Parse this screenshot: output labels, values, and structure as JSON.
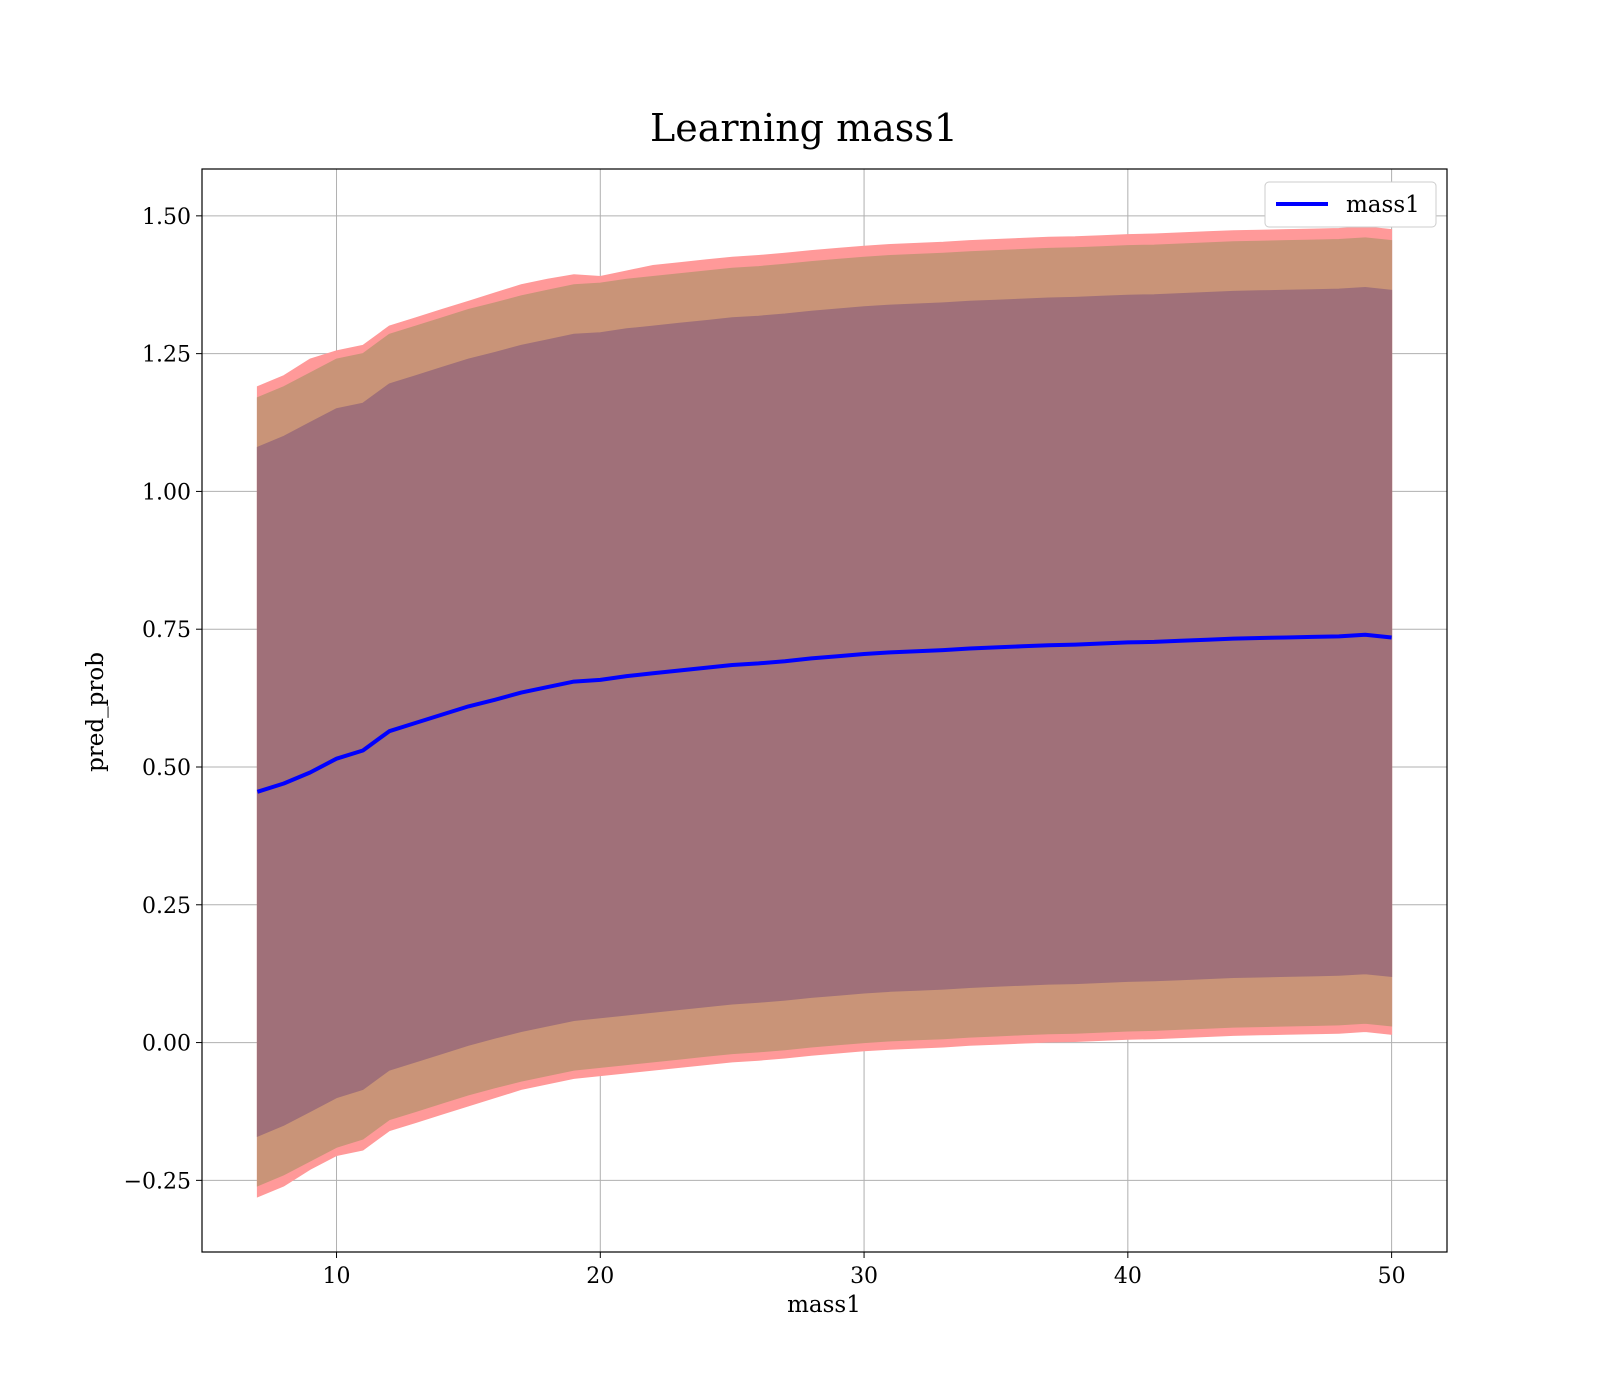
{
  "chart_data": {
    "type": "area",
    "title": "Learning mass1",
    "xlabel": "mass1",
    "ylabel": "pred_prob",
    "xlim": [
      4.9,
      52.1
    ],
    "ylim": [
      -0.38,
      1.585
    ],
    "grid": true,
    "legend_placement": "top-right",
    "xticks": [
      10,
      20,
      30,
      40,
      50
    ],
    "xtick_labels": [
      "10",
      "20",
      "30",
      "40",
      "50"
    ],
    "yticks": [
      -0.25,
      0.0,
      0.25,
      0.5,
      0.75,
      1.0,
      1.25,
      1.5
    ],
    "ytick_labels": [
      "−0.25",
      "0.00",
      "0.25",
      "0.50",
      "0.75",
      "1.00",
      "1.25",
      "1.50"
    ],
    "colors": {
      "line": "#0000ff",
      "band_outer": "#ff9999",
      "band_middle": "#c99478",
      "band_inner": "#a07079"
    },
    "series": [
      {
        "name": "mass1",
        "x": [
          7,
          8,
          9,
          10,
          11,
          12,
          13,
          14,
          15,
          16,
          17,
          18,
          19,
          20,
          21,
          22,
          23,
          24,
          25,
          26,
          27,
          28,
          29,
          30,
          31,
          32,
          33,
          34,
          35,
          36,
          37,
          38,
          39,
          40,
          41,
          42,
          43,
          44,
          45,
          46,
          47,
          48,
          49,
          50
        ],
        "y": [
          0.455,
          0.47,
          0.49,
          0.515,
          0.53,
          0.565,
          0.58,
          0.595,
          0.61,
          0.622,
          0.635,
          0.645,
          0.655,
          0.658,
          0.665,
          0.67,
          0.675,
          0.68,
          0.685,
          0.688,
          0.692,
          0.697,
          0.701,
          0.705,
          0.708,
          0.71,
          0.712,
          0.715,
          0.717,
          0.719,
          0.721,
          0.722,
          0.724,
          0.726,
          0.727,
          0.729,
          0.731,
          0.733,
          0.734,
          0.735,
          0.736,
          0.737,
          0.74,
          0.735
        ]
      }
    ],
    "bands": [
      {
        "level": "outer",
        "upper": [
          1.19,
          1.21,
          1.24,
          1.255,
          1.265,
          1.3,
          1.315,
          1.33,
          1.345,
          1.36,
          1.375,
          1.385,
          1.393,
          1.39,
          1.4,
          1.41,
          1.415,
          1.42,
          1.425,
          1.428,
          1.432,
          1.437,
          1.441,
          1.445,
          1.448,
          1.45,
          1.452,
          1.455,
          1.457,
          1.459,
          1.461,
          1.462,
          1.464,
          1.466,
          1.467,
          1.469,
          1.471,
          1.473,
          1.474,
          1.475,
          1.476,
          1.477,
          1.48,
          1.475
        ],
        "lower": [
          -0.28,
          -0.26,
          -0.23,
          -0.205,
          -0.195,
          -0.16,
          -0.145,
          -0.13,
          -0.115,
          -0.1,
          -0.085,
          -0.075,
          -0.065,
          -0.06,
          -0.055,
          -0.05,
          -0.045,
          -0.04,
          -0.035,
          -0.032,
          -0.028,
          -0.023,
          -0.019,
          -0.015,
          -0.012,
          -0.01,
          -0.008,
          -0.005,
          -0.003,
          -0.001,
          0.001,
          0.002,
          0.004,
          0.006,
          0.007,
          0.009,
          0.011,
          0.013,
          0.014,
          0.015,
          0.016,
          0.017,
          0.02,
          0.015
        ]
      },
      {
        "level": "middle",
        "upper": [
          1.17,
          1.19,
          1.215,
          1.24,
          1.25,
          1.285,
          1.3,
          1.315,
          1.33,
          1.342,
          1.355,
          1.365,
          1.375,
          1.378,
          1.385,
          1.39,
          1.395,
          1.4,
          1.405,
          1.408,
          1.412,
          1.417,
          1.421,
          1.425,
          1.428,
          1.43,
          1.432,
          1.435,
          1.437,
          1.439,
          1.441,
          1.442,
          1.444,
          1.446,
          1.447,
          1.449,
          1.451,
          1.453,
          1.454,
          1.455,
          1.456,
          1.457,
          1.46,
          1.455
        ],
        "lower": [
          -0.26,
          -0.24,
          -0.215,
          -0.19,
          -0.175,
          -0.14,
          -0.125,
          -0.11,
          -0.095,
          -0.082,
          -0.07,
          -0.06,
          -0.05,
          -0.045,
          -0.04,
          -0.035,
          -0.03,
          -0.025,
          -0.02,
          -0.017,
          -0.013,
          -0.008,
          -0.004,
          0.0,
          0.003,
          0.005,
          0.007,
          0.01,
          0.012,
          0.014,
          0.016,
          0.017,
          0.019,
          0.021,
          0.022,
          0.024,
          0.026,
          0.028,
          0.029,
          0.03,
          0.031,
          0.032,
          0.035,
          0.03
        ]
      },
      {
        "level": "inner",
        "upper": [
          1.08,
          1.1,
          1.125,
          1.15,
          1.16,
          1.195,
          1.21,
          1.225,
          1.24,
          1.252,
          1.265,
          1.275,
          1.285,
          1.288,
          1.295,
          1.3,
          1.305,
          1.31,
          1.315,
          1.318,
          1.322,
          1.327,
          1.331,
          1.335,
          1.338,
          1.34,
          1.342,
          1.345,
          1.347,
          1.349,
          1.351,
          1.352,
          1.354,
          1.356,
          1.357,
          1.359,
          1.361,
          1.363,
          1.364,
          1.365,
          1.366,
          1.367,
          1.37,
          1.365
        ],
        "lower": [
          -0.17,
          -0.15,
          -0.125,
          -0.1,
          -0.085,
          -0.05,
          -0.035,
          -0.02,
          -0.005,
          0.008,
          0.02,
          0.03,
          0.04,
          0.045,
          0.05,
          0.055,
          0.06,
          0.065,
          0.07,
          0.073,
          0.077,
          0.082,
          0.086,
          0.09,
          0.093,
          0.095,
          0.097,
          0.1,
          0.102,
          0.104,
          0.106,
          0.107,
          0.109,
          0.111,
          0.112,
          0.114,
          0.116,
          0.118,
          0.119,
          0.12,
          0.121,
          0.122,
          0.125,
          0.12
        ]
      }
    ]
  }
}
